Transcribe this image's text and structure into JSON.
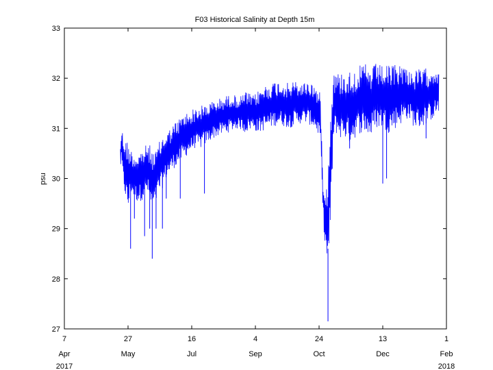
{
  "chart_data": {
    "type": "line",
    "title": "F03 Historical Salinity at Depth 15m",
    "xlabel": "",
    "ylabel": "psu",
    "ylim": [
      27,
      33
    ],
    "xlim": [
      "2017-04-07",
      "2018-02-01"
    ],
    "yticks": [
      27,
      28,
      29,
      30,
      31,
      32,
      33
    ],
    "xticks": [
      {
        "date": "2017-04-07",
        "day": "7",
        "month": "Apr",
        "year": "2017"
      },
      {
        "date": "2017-05-27",
        "day": "27",
        "month": "May",
        "year": ""
      },
      {
        "date": "2017-07-16",
        "day": "16",
        "month": "Jul",
        "year": ""
      },
      {
        "date": "2017-09-04",
        "day": "4",
        "month": "Sep",
        "year": ""
      },
      {
        "date": "2017-10-24",
        "day": "24",
        "month": "Oct",
        "year": ""
      },
      {
        "date": "2017-12-13",
        "day": "13",
        "month": "Dec",
        "year": ""
      },
      {
        "date": "2018-02-01",
        "day": "1",
        "month": "Feb",
        "year": "2018"
      }
    ],
    "grid": false,
    "legend": "none",
    "series": [
      {
        "name": "",
        "color": "#0000ff",
        "x": [
          "2017-05-21",
          "2017-05-22",
          "2017-05-23",
          "2017-05-25",
          "2017-05-27",
          "2017-05-29",
          "2017-06-01",
          "2017-06-04",
          "2017-06-08",
          "2017-06-11",
          "2017-06-14",
          "2017-06-17",
          "2017-06-20",
          "2017-06-23",
          "2017-06-26",
          "2017-06-29",
          "2017-07-02",
          "2017-07-06",
          "2017-07-10",
          "2017-07-14",
          "2017-07-18",
          "2017-07-23",
          "2017-07-28",
          "2017-08-02",
          "2017-08-07",
          "2017-08-12",
          "2017-08-17",
          "2017-08-22",
          "2017-08-27",
          "2017-08-30",
          "2017-09-02",
          "2017-09-06",
          "2017-09-10",
          "2017-09-15",
          "2017-09-20",
          "2017-09-25",
          "2017-09-30",
          "2017-10-05",
          "2017-10-10",
          "2017-10-15",
          "2017-10-20",
          "2017-10-25",
          "2017-10-27",
          "2017-10-29",
          "2017-10-31",
          "2017-11-02",
          "2017-11-04",
          "2017-11-06",
          "2017-11-09",
          "2017-11-13",
          "2017-11-17",
          "2017-11-21",
          "2017-11-25",
          "2017-11-29",
          "2017-12-03",
          "2017-12-08",
          "2017-12-13",
          "2017-12-18",
          "2017-12-23",
          "2017-12-28",
          "2018-01-02",
          "2018-01-07",
          "2018-01-12",
          "2018-01-17",
          "2018-01-22",
          "2018-01-26"
        ],
        "high": [
          30.7,
          31.05,
          30.9,
          30.8,
          30.75,
          30.6,
          30.5,
          30.55,
          30.6,
          30.7,
          30.65,
          30.5,
          30.7,
          30.85,
          30.95,
          31.0,
          31.1,
          31.2,
          31.3,
          31.35,
          31.4,
          31.45,
          31.5,
          31.55,
          31.6,
          31.65,
          31.7,
          31.6,
          31.75,
          31.7,
          31.65,
          31.75,
          31.85,
          31.9,
          31.95,
          31.95,
          31.9,
          31.95,
          31.9,
          31.95,
          31.9,
          31.7,
          30.0,
          29.9,
          30.1,
          31.5,
          32.1,
          32.15,
          32.1,
          32.15,
          32.15,
          32.2,
          32.25,
          32.3,
          32.2,
          32.3,
          32.25,
          32.25,
          32.3,
          32.3,
          32.2,
          32.15,
          32.2,
          32.2,
          32.25,
          32.2
        ],
        "low": [
          30.2,
          30.3,
          29.9,
          29.6,
          29.3,
          29.7,
          29.6,
          29.5,
          29.6,
          29.7,
          29.4,
          29.4,
          29.7,
          29.8,
          30.0,
          30.1,
          30.2,
          30.3,
          30.4,
          30.5,
          30.6,
          30.6,
          30.7,
          30.8,
          30.85,
          30.9,
          30.95,
          31.0,
          30.9,
          30.95,
          31.0,
          30.9,
          30.95,
          31.0,
          31.05,
          31.05,
          31.0,
          31.05,
          31.1,
          31.1,
          31.0,
          30.8,
          29.3,
          28.5,
          28.2,
          28.9,
          30.6,
          30.9,
          30.8,
          30.8,
          30.7,
          30.8,
          30.9,
          30.9,
          30.8,
          31.0,
          31.0,
          30.9,
          31.0,
          31.1,
          31.2,
          31.0,
          31.0,
          31.1,
          31.2,
          31.3
        ],
        "spikes": [
          {
            "x": "2017-05-29",
            "y": 28.6
          },
          {
            "x": "2017-06-01",
            "y": 29.2
          },
          {
            "x": "2017-06-09",
            "y": 28.85
          },
          {
            "x": "2017-06-13",
            "y": 29.0
          },
          {
            "x": "2017-06-15",
            "y": 28.4
          },
          {
            "x": "2017-06-18",
            "y": 29.0
          },
          {
            "x": "2017-06-23",
            "y": 29.0
          },
          {
            "x": "2017-06-26",
            "y": 29.6
          },
          {
            "x": "2017-07-07",
            "y": 29.6
          },
          {
            "x": "2017-07-26",
            "y": 29.7
          },
          {
            "x": "2017-10-31",
            "y": 27.15
          },
          {
            "x": "2017-11-17",
            "y": 30.6
          },
          {
            "x": "2017-12-13",
            "y": 29.9
          },
          {
            "x": "2017-12-16",
            "y": 30.0
          },
          {
            "x": "2018-01-16",
            "y": 30.8
          }
        ]
      }
    ]
  }
}
